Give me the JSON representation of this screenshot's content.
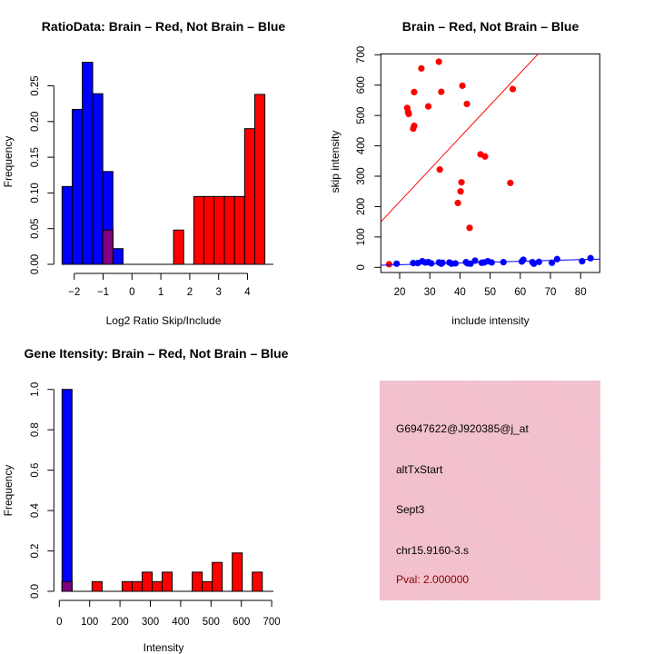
{
  "colors": {
    "red": "#ff0000",
    "blue": "#0000ff",
    "overlap": "#800080",
    "panel_bg": "#f4c2cd",
    "pval": "#8b0000"
  },
  "chart_data": [
    {
      "type": "bar",
      "title": "RatioData: Brain – Red, Not Brain – Blue",
      "xlabel": "Log2 Ratio Skip/Include",
      "ylabel": "Frequency",
      "xticks": [
        "-2",
        "-1",
        "0",
        "1",
        "2",
        "3",
        "4"
      ],
      "yticks": [
        "0.00",
        "0.05",
        "0.10",
        "0.15",
        "0.20",
        "0.25"
      ],
      "series": [
        {
          "name": "Not Brain",
          "color": "blue",
          "bins": [
            [
              -2.42,
              -2.07,
              0.109
            ],
            [
              -2.07,
              -1.72,
              0.217
            ],
            [
              -1.72,
              -1.36,
              0.283
            ],
            [
              -1.36,
              -1.01,
              0.239
            ],
            [
              -1.01,
              -0.66,
              0.13
            ],
            [
              -0.66,
              -0.31,
              0.022
            ]
          ]
        },
        {
          "name": "Brain",
          "color": "red",
          "bins": [
            [
              -1.01,
              -0.66,
              0.048
            ],
            [
              1.44,
              1.79,
              0.048
            ],
            [
              2.14,
              2.49,
              0.095
            ],
            [
              2.49,
              2.84,
              0.095
            ],
            [
              2.84,
              3.2,
              0.095
            ],
            [
              3.2,
              3.55,
              0.095
            ],
            [
              3.55,
              3.9,
              0.095
            ],
            [
              3.9,
              4.25,
              0.19
            ],
            [
              4.25,
              4.6,
              0.238
            ]
          ]
        }
      ]
    },
    {
      "type": "scatter",
      "title": "Brain – Red, Not Brain – Blue",
      "xlabel": "include intensity",
      "ylabel": "skip intensity",
      "xticks": [
        "20",
        "30",
        "40",
        "50",
        "60",
        "70",
        "80"
      ],
      "yticks": [
        "0",
        "100",
        "200",
        "300",
        "400",
        "500",
        "600",
        "700"
      ],
      "xlim": [
        13.8,
        86.3
      ],
      "ylim": [
        -17,
        705
      ],
      "series": [
        {
          "name": "Brain",
          "color": "red",
          "fit": [
            10.6,
            4
          ],
          "points": [
            [
              16.5,
              10
            ],
            [
              22.5,
              525
            ],
            [
              22.8,
              512
            ],
            [
              23,
              505
            ],
            [
              24.5,
              457
            ],
            [
              24.8,
              466
            ],
            [
              24.8,
              577
            ],
            [
              27.2,
              655
            ],
            [
              29.5,
              530
            ],
            [
              33,
              677
            ],
            [
              33.3,
              322
            ],
            [
              33.8,
              578
            ],
            [
              39.3,
              212
            ],
            [
              40.2,
              250
            ],
            [
              40.5,
              280
            ],
            [
              40.8,
              598
            ],
            [
              42.3,
              538
            ],
            [
              43.2,
              130
            ],
            [
              46.8,
              372
            ],
            [
              48.3,
              365
            ],
            [
              56.7,
              278
            ],
            [
              57.5,
              587
            ]
          ]
        },
        {
          "name": "Not Brain",
          "color": "blue",
          "fit": [
            0.28,
            3
          ],
          "points": [
            [
              19,
              12
            ],
            [
              24.5,
              14
            ],
            [
              26,
              14
            ],
            [
              27.5,
              20
            ],
            [
              28.5,
              16
            ],
            [
              29.5,
              17
            ],
            [
              30.5,
              13
            ],
            [
              33,
              16
            ],
            [
              33.8,
              12
            ],
            [
              34.2,
              15
            ],
            [
              36.5,
              16
            ],
            [
              37.2,
              12
            ],
            [
              38.5,
              13
            ],
            [
              42,
              17
            ],
            [
              42.5,
              13
            ],
            [
              43.5,
              12
            ],
            [
              45,
              22
            ],
            [
              47.2,
              15
            ],
            [
              48,
              16
            ],
            [
              49.2,
              20
            ],
            [
              50.5,
              16
            ],
            [
              54.4,
              17
            ],
            [
              60.5,
              19
            ],
            [
              61,
              25
            ],
            [
              64,
              17
            ],
            [
              64.5,
              12
            ],
            [
              66.2,
              18
            ],
            [
              70.5,
              15
            ],
            [
              72.2,
              27
            ],
            [
              80.5,
              20
            ],
            [
              83.3,
              30
            ]
          ]
        }
      ]
    },
    {
      "type": "bar",
      "title": "Gene Itensity: Brain – Red, Not Brain – Blue",
      "xlabel": "Intensity",
      "ylabel": "Frequency",
      "xticks": [
        "0",
        "100",
        "200",
        "300",
        "400",
        "500",
        "600",
        "700"
      ],
      "yticks": [
        "0.0",
        "0.2",
        "0.4",
        "0.6",
        "0.8",
        "1.0"
      ],
      "series": [
        {
          "name": "Not Brain",
          "color": "blue",
          "bins": [
            [
              9,
              42,
              1.0
            ]
          ]
        },
        {
          "name": "Brain",
          "color": "red",
          "bins": [
            [
              9,
              42,
              0.048
            ],
            [
              108,
              141,
              0.048
            ],
            [
              207,
              240,
              0.048
            ],
            [
              240,
              273,
              0.048
            ],
            [
              273,
              306,
              0.095
            ],
            [
              306,
              339,
              0.048
            ],
            [
              339,
              372,
              0.095
            ],
            [
              438,
              471,
              0.095
            ],
            [
              471,
              504,
              0.048
            ],
            [
              504,
              537,
              0.143
            ],
            [
              570,
              603,
              0.19
            ],
            [
              636,
              669,
              0.095
            ]
          ]
        }
      ]
    }
  ],
  "info_panel": {
    "probe": "G6947622@J920385@j_at",
    "event_type": "altTxStart",
    "gene": "Sept3",
    "location": "chr15.9160-3.s",
    "pval": "Pval: 2.000000"
  }
}
